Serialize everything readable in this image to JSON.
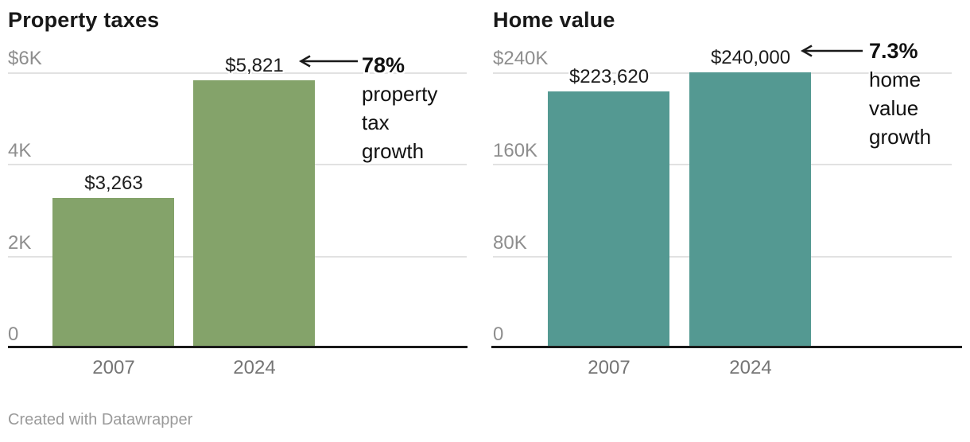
{
  "chart_data": [
    {
      "type": "bar",
      "title": "Property taxes",
      "categories": [
        "2007",
        "2024"
      ],
      "values": [
        3263,
        5821
      ],
      "value_labels": [
        "$3,263",
        "$5,821"
      ],
      "ylim": [
        0,
        6000
      ],
      "grid": true,
      "y_ticks": [
        {
          "value": 6000,
          "label": "$6K"
        },
        {
          "value": 4000,
          "label": "4K"
        },
        {
          "value": 2000,
          "label": "2K"
        },
        {
          "value": 0,
          "label": "0"
        }
      ],
      "bar_color": "#84a36a",
      "annotation": {
        "percent": "78%",
        "lines": [
          "property",
          "tax",
          "growth"
        ],
        "arrow_direction": "left"
      }
    },
    {
      "type": "bar",
      "title": "Home value",
      "categories": [
        "2007",
        "2024"
      ],
      "values": [
        223620,
        240000
      ],
      "value_labels": [
        "$223,620",
        "$240,000"
      ],
      "ylim": [
        0,
        240000
      ],
      "grid": true,
      "y_ticks": [
        {
          "value": 240000,
          "label": "$240K"
        },
        {
          "value": 160000,
          "label": "160K"
        },
        {
          "value": 80000,
          "label": "80K"
        },
        {
          "value": 0,
          "label": "0"
        }
      ],
      "bar_color": "#549992",
      "annotation": {
        "percent": "7.3%",
        "lines": [
          "home",
          "value",
          "growth"
        ],
        "arrow_direction": "left"
      }
    }
  ],
  "colors": {
    "property_bar": "#84a36a",
    "home_bar": "#549992",
    "gridline": "#e2e2e2",
    "axis_line": "#1a1a1a",
    "tick_text": "#8e8e8e",
    "category_text": "#757575",
    "annotation_text": "#111111",
    "footer_text": "#9a9a9a"
  },
  "footer": {
    "attribution": "Created with Datawrapper"
  }
}
